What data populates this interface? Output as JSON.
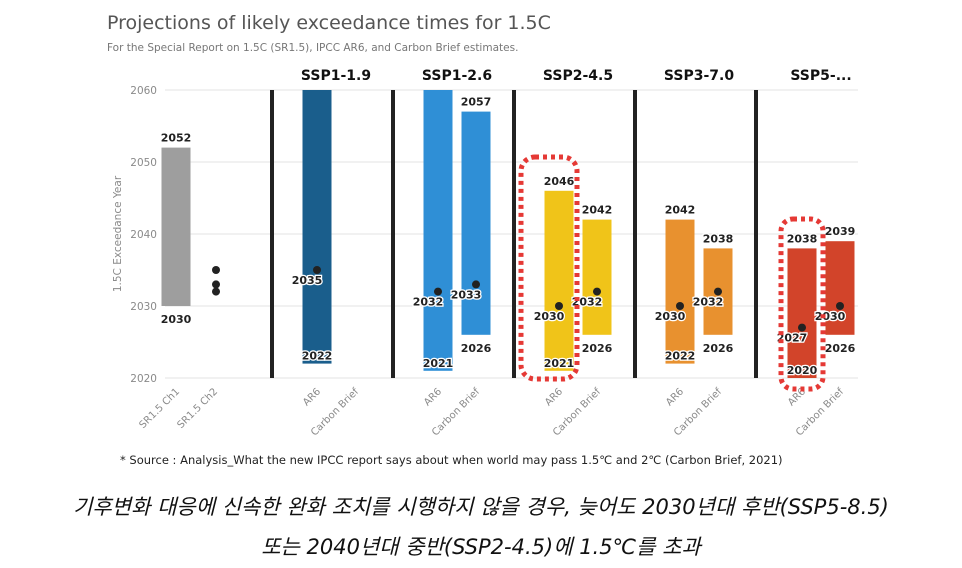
{
  "title": "Projections of likely exceedance times for 1.5C",
  "subtitle": "For the Special Report on 1.5C (SR1.5), IPCC AR6, and Carbon Brief estimates.",
  "source": "* Source : Analysis_What the new IPCC report says about when world may pass 1.5℃ and 2℃ (Carbon Brief, 2021)",
  "caption_line1": "기후변화 대응에 신속한 완화 조치를 시행하지 않을 경우, 늦어도 2030년대 후반(SSP5-8.5)",
  "caption_line2": "또는 2040년대 중반(SSP2-4.5)에 1.5℃를 초과",
  "chart_data": {
    "type": "floating-bar",
    "ylabel": "1.5C Exceedance Year",
    "ylim": [
      2020,
      2060
    ],
    "yticks": [
      2020,
      2030,
      2040,
      2050,
      2060
    ],
    "grid": true,
    "groups": [
      {
        "label": "",
        "color": "#9e9e9e",
        "bars": [
          {
            "category": "SR1.5 Ch1",
            "low": 2030,
            "high": 2052,
            "low_label": "2030",
            "high_label": "2052"
          },
          {
            "category": "SR1.5 Ch2",
            "points": [
              2032,
              2033,
              2035
            ]
          }
        ]
      },
      {
        "label": "SSP1-1.9",
        "color": "#1a5e8c",
        "bars": [
          {
            "category": "AR6",
            "low": 2022,
            "high": 2060,
            "mid": 2035,
            "low_label": "2022",
            "mid_label": "2035"
          },
          {
            "category": "Carbon Brief"
          }
        ]
      },
      {
        "label": "SSP1-2.6",
        "color": "#2f8fd6",
        "bars": [
          {
            "category": "AR6",
            "low": 2021,
            "high": 2060,
            "mid": 2032,
            "low_label": "2021",
            "mid_label": "2032"
          },
          {
            "category": "Carbon Brief",
            "low": 2026,
            "high": 2057,
            "mid": 2033,
            "low_label": "2026",
            "high_label": "2057",
            "mid_label": "2033"
          }
        ]
      },
      {
        "label": "SSP2-4.5",
        "color": "#f0c419",
        "bars": [
          {
            "category": "AR6",
            "low": 2021,
            "high": 2046,
            "mid": 2030,
            "low_label": "2021",
            "high_label": "2046",
            "mid_label": "2030"
          },
          {
            "category": "Carbon Brief",
            "low": 2026,
            "high": 2042,
            "mid": 2032,
            "low_label": "2026",
            "high_label": "2042",
            "mid_label": "2032"
          }
        ]
      },
      {
        "label": "SSP3-7.0",
        "color": "#e8912f",
        "bars": [
          {
            "category": "AR6",
            "low": 2022,
            "high": 2042,
            "mid": 2030,
            "low_label": "2022",
            "high_label": "2042",
            "mid_label": "2030"
          },
          {
            "category": "Carbon Brief",
            "low": 2026,
            "high": 2038,
            "mid": 2032,
            "low_label": "2026",
            "high_label": "2038",
            "mid_label": "2032"
          }
        ]
      },
      {
        "label": "SSP5-...",
        "color": "#d2442a",
        "bars": [
          {
            "category": "AR6",
            "low": 2020,
            "high": 2038,
            "mid": 2027,
            "low_label": "2020",
            "high_label": "2038",
            "mid_label": "2027"
          },
          {
            "category": "Carbon Brief",
            "low": 2026,
            "high": 2039,
            "mid": 2030,
            "low_label": "2026",
            "high_label": "2039",
            "mid_label": "2030"
          }
        ]
      }
    ],
    "highlight_color": "#e53935",
    "highlighted": [
      "SSP2-4.5 AR6",
      "SSP5-... AR6"
    ]
  }
}
